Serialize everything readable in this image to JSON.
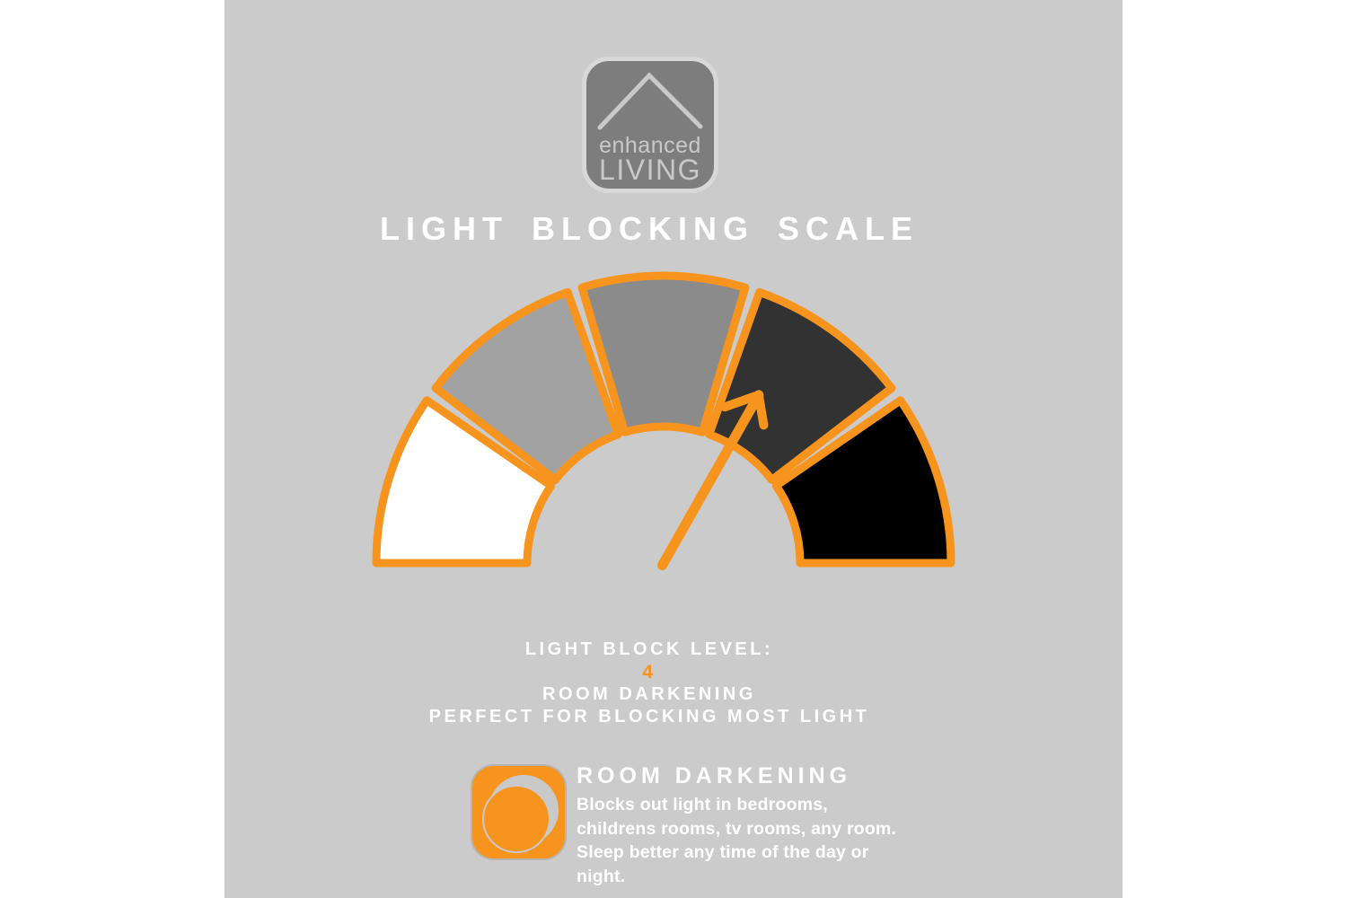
{
  "colors": {
    "accent_orange": "#f7941e",
    "canvas_bg": "#cbcbcb",
    "page_bg": "#ffffff",
    "text_white": "#ffffff",
    "logo_bg": "#7d7d7d",
    "logo_fg": "#c9c9c9",
    "gap_gray": "#cbcbcb"
  },
  "logo": {
    "line1": "enhanced",
    "line2": "LIVING",
    "icon": "house-roof-icon"
  },
  "title": "LIGHT BLOCKING SCALE",
  "level_block": {
    "label": "LIGHT BLOCK LEVEL:",
    "value": "4",
    "name": "ROOM DARKENING",
    "tagline": "PERFECT FOR BLOCKING MOST LIGHT"
  },
  "info": {
    "icon": "moon-icon",
    "heading": "ROOM DARKENING",
    "lines": [
      "Blocks out light in bedrooms,",
      "childrens rooms, tv rooms, any room.",
      "Sleep better any time of the day or",
      "night."
    ]
  },
  "chart_data": {
    "type": "pie",
    "variant": "semicircular-gauge",
    "title": "LIGHT BLOCKING SCALE",
    "scale_min": 1,
    "scale_max": 5,
    "value": 4,
    "value_label": "ROOM DARKENING",
    "segments": [
      {
        "level": 1,
        "color": "#ffffff"
      },
      {
        "level": 2,
        "color": "#a2a2a2"
      },
      {
        "level": 3,
        "color": "#8b8b8b"
      },
      {
        "level": 4,
        "color": "#323232"
      },
      {
        "level": 5,
        "color": "#000000"
      }
    ],
    "needle_angle_deg": 60.5,
    "ring_color": "#f7941e",
    "needle_color": "#f7941e",
    "legend": "none",
    "axis": "none"
  }
}
